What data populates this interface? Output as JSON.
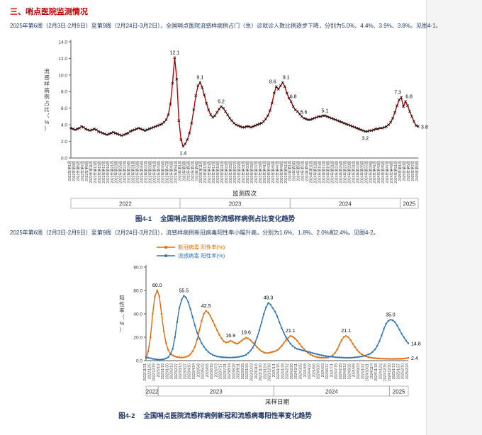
{
  "colors": {
    "heading_red": "#c00000",
    "body_text": "#1f3864",
    "ili_line": "#c00000",
    "covid_line": "#e36c09",
    "flu_line": "#2e75b6",
    "axis": "#595959"
  },
  "section": {
    "heading": "三、哨点医院监测情况"
  },
  "paragraphs": {
    "p1": "2025年第6周（2月3日-2月9日）至第9周（2月24日-3月2日），全国哨点医院流感样病例占门（急）诊就诊人数比例逐步下降，分别为5.0%、4.4%、3.9%、3.8%。见图4-1。",
    "p2": "2025年第6周（2月3日-2月9日）至第9周（2月24日-3月2日），流感样病例新冠病毒阳性率小幅升高，分别为1.6%、1.8%、2.0%和2.4%。见图4-2。"
  },
  "figures": {
    "f1": {
      "label": "图4-1",
      "title": "全国哨点医院报告的流感样病例占比变化趋势"
    },
    "f2": {
      "label": "图4-2",
      "title": "全国哨点医院流感样病例新冠和流感病毒阳性率变化趋势"
    }
  },
  "chart_data": [
    {
      "type": "line",
      "title": "全国哨点医院报告的流感样病例占比变化趋势",
      "y_title": "流感样病例占比（%）",
      "x_title": "监测周次",
      "y_axis": {
        "min": 0,
        "max": 14,
        "step": 2
      },
      "n_points": 165,
      "x_start": "2022年第1周",
      "x_end": "2025年第9周",
      "x_tick_step": 2,
      "series": [
        {
          "name": "流感样病例占比(%)",
          "color": "#c00000",
          "marker": "cross",
          "marker_color": "#000000",
          "values": [
            3.6,
            3.5,
            3.4,
            3.5,
            3.6,
            3.8,
            3.7,
            3.5,
            3.4,
            3.3,
            3.4,
            3.5,
            3.4,
            3.2,
            3.1,
            3.0,
            2.9,
            2.8,
            2.9,
            3.0,
            3.1,
            3.0,
            2.9,
            2.8,
            2.7,
            2.8,
            2.9,
            3.0,
            3.2,
            3.3,
            3.4,
            3.5,
            3.6,
            3.5,
            3.4,
            3.3,
            3.4,
            3.5,
            3.6,
            3.7,
            3.8,
            3.9,
            4.0,
            4.1,
            4.3,
            4.6,
            5.2,
            6.5,
            9.0,
            12.1,
            9.5,
            4.5,
            2.2,
            1.4,
            1.7,
            2.2,
            3.0,
            4.2,
            5.8,
            7.5,
            8.7,
            9.1,
            8.5,
            7.6,
            6.6,
            5.8,
            5.2,
            4.9,
            5.1,
            5.5,
            5.9,
            6.2,
            6.0,
            5.6,
            5.2,
            4.8,
            4.5,
            4.2,
            4.0,
            3.9,
            3.8,
            3.7,
            3.7,
            3.8,
            3.8,
            3.7,
            3.8,
            3.9,
            4.0,
            4.1,
            4.2,
            4.4,
            4.7,
            5.1,
            5.7,
            6.6,
            7.8,
            8.6,
            8.3,
            8.7,
            9.1,
            8.6,
            7.8,
            7.2,
            6.8,
            6.2,
            5.8,
            5.6,
            5.3,
            5.0,
            4.8,
            4.7,
            4.6,
            4.6,
            4.7,
            4.8,
            4.9,
            5.0,
            5.0,
            5.1,
            5.1,
            5.0,
            4.9,
            4.8,
            4.7,
            4.6,
            4.5,
            4.4,
            4.3,
            4.2,
            4.1,
            4.0,
            3.9,
            3.8,
            3.7,
            3.6,
            3.5,
            3.4,
            3.3,
            3.2,
            3.2,
            3.3,
            3.3,
            3.4,
            3.5,
            3.5,
            3.6,
            3.6,
            3.7,
            3.8,
            4.0,
            4.3,
            4.8,
            5.5,
            6.3,
            7.0,
            7.3,
            6.2,
            6.8,
            6.3,
            5.6,
            5.0,
            4.4,
            3.9,
            3.8
          ]
        }
      ],
      "annotations": [
        {
          "series": 0,
          "i": 49,
          "label": "12.1",
          "pos": "above"
        },
        {
          "series": 0,
          "i": 53,
          "label": "1.4",
          "pos": "below"
        },
        {
          "series": 0,
          "i": 61,
          "label": "9.1",
          "pos": "above"
        },
        {
          "series": 0,
          "i": 71,
          "label": "6.2",
          "pos": "above"
        },
        {
          "series": 0,
          "i": 97,
          "label": "8.6",
          "pos": "above",
          "dx": -5
        },
        {
          "series": 0,
          "i": 100,
          "label": "9.1",
          "pos": "above",
          "dx": 5
        },
        {
          "series": 0,
          "i": 104,
          "label": "6.8",
          "pos": "above",
          "dx": 3
        },
        {
          "series": 0,
          "i": 107,
          "label": "5.6",
          "pos": "right"
        },
        {
          "series": 0,
          "i": 120,
          "label": "5.1",
          "pos": "above"
        },
        {
          "series": 0,
          "i": 139,
          "label": "3.2",
          "pos": "below"
        },
        {
          "series": 0,
          "i": 156,
          "label": "7.3",
          "pos": "above",
          "dx": -5
        },
        {
          "series": 0,
          "i": 158,
          "label": "6.8",
          "pos": "above",
          "dx": 5
        },
        {
          "series": 0,
          "i": 164,
          "label": "3.8",
          "pos": "right"
        }
      ],
      "year_bands": [
        {
          "label": "2022",
          "from": 0,
          "to": 51
        },
        {
          "label": "2023",
          "from": 52,
          "to": 103
        },
        {
          "label": "2024",
          "from": 104,
          "to": 155
        },
        {
          "label": "2025",
          "from": 156,
          "to": 164
        }
      ],
      "x_ticks": [
        "2022年第1周",
        "2022年第3周",
        "2022年第5周",
        "2022年第7周",
        "2022年第9周",
        "2022年第11周",
        "2022年第13周",
        "2022年第15周",
        "2022年第17周",
        "2022年第19周",
        "2022年第21周",
        "2022年第23周",
        "2022年第25周",
        "2022年第27周",
        "2022年第29周",
        "2022年第31周",
        "2022年第33周",
        "2022年第35周",
        "2022年第37周",
        "2022年第39周",
        "2022年第41周",
        "2022年第43周",
        "2022年第45周",
        "2022年第47周",
        "2022年第49周",
        "2022年第51周",
        "2023年第1周",
        "2023年第3周",
        "2023年第5周",
        "2023年第7周",
        "2023年第9周",
        "2023年第11周",
        "2023年第13周",
        "2023年第15周",
        "2023年第17周",
        "2023年第19周",
        "2023年第21周",
        "2023年第23周",
        "2023年第25周",
        "2023年第27周",
        "2023年第29周",
        "2023年第31周",
        "2023年第33周",
        "2023年第35周",
        "2023年第37周",
        "2023年第39周",
        "2023年第41周",
        "2023年第43周",
        "2023年第45周",
        "2023年第47周",
        "2023年第49周",
        "2023年第51周",
        "2024年第1周",
        "2024年第3周",
        "2024年第5周",
        "2024年第7周",
        "2024年第9周",
        "2024年第11周",
        "2024年第13周",
        "2024年第15周",
        "2024年第17周",
        "2024年第19周",
        "2024年第21周",
        "2024年第23周",
        "2024年第25周",
        "2024年第27周",
        "2024年第29周",
        "2024年第31周",
        "2024年第33周",
        "2024年第35周",
        "2024年第37周",
        "2024年第39周",
        "2024年第41周",
        "2024年第43周",
        "2024年第45周",
        "2024年第47周",
        "2024年第49周",
        "2024年第51周",
        "2025年第1周",
        "2025年第3周",
        "2025年第5周",
        "2025年第7周",
        "2025年第9周"
      ]
    },
    {
      "type": "line",
      "title": "全国哨点医院流感样病例新冠和流感病毒阳性率变化趋势",
      "y_title": "阳性率（%）",
      "x_title": "采样日期",
      "y_axis": {
        "min": 0,
        "max": 80,
        "step": 20
      },
      "n_points": 119,
      "x_start": "2022/11/21",
      "x_end": "2025/2/24",
      "x_tick_step": 2,
      "legend": [
        {
          "label": "新冠病毒 阳性率(%)",
          "color": "#e36c09"
        },
        {
          "label": "流感病毒 阳性率(%)",
          "color": "#2e75b6"
        }
      ],
      "legend_position": "top",
      "series": [
        {
          "name": "新冠病毒 阳性率(%)",
          "color": "#e36c09",
          "marker": "square",
          "values": [
            2,
            8,
            20,
            40,
            55,
            60,
            55,
            40,
            25,
            15,
            9,
            6,
            4.5,
            3.5,
            3.0,
            2.8,
            2.6,
            2.8,
            3.2,
            4.0,
            5.5,
            8,
            12,
            18,
            26,
            34,
            40,
            42.5,
            41,
            38,
            34,
            30,
            26,
            22,
            19,
            16.5,
            15.5,
            16,
            16.9,
            16.2,
            15,
            14.5,
            15.5,
            17,
            18.5,
            19.6,
            19,
            17.5,
            15.5,
            13.5,
            11.5,
            9.5,
            8,
            7,
            6.5,
            6.5,
            7,
            7.5,
            8,
            9,
            10.5,
            12.5,
            15,
            17.5,
            19.5,
            21.1,
            20.5,
            19,
            17,
            14.5,
            12,
            10,
            8,
            6.5,
            5.2,
            4.2,
            3.5,
            3.0,
            2.7,
            2.5,
            2.4,
            2.5,
            2.8,
            3.4,
            4.5,
            6.5,
            9.5,
            13.5,
            17.5,
            20.2,
            21.1,
            20,
            17.5,
            14.5,
            11.5,
            9,
            7,
            5.5,
            4.4,
            3.6,
            3.0,
            2.6,
            2.3,
            2.1,
            1.9,
            1.8,
            1.7,
            1.6,
            1.5,
            1.5,
            1.4,
            1.4,
            1.5,
            1.5,
            1.5,
            1.6,
            1.8,
            2.0,
            2.4
          ]
        },
        {
          "name": "流感病毒 阳性率(%)",
          "color": "#2e75b6",
          "marker": "square",
          "values": [
            3,
            2.5,
            2,
            1.5,
            1.2,
            1.0,
            0.8,
            0.9,
            1.2,
            1.8,
            3,
            5.5,
            10,
            20,
            33,
            45,
            52,
            55.5,
            54,
            50,
            44,
            37,
            30,
            24,
            19,
            15,
            12,
            9.5,
            7.5,
            6,
            5,
            4.2,
            3.6,
            3.2,
            3.0,
            2.8,
            2.7,
            2.6,
            2.6,
            2.7,
            2.8,
            3.0,
            3.3,
            3.7,
            4.2,
            5.0,
            6.5,
            8.5,
            11,
            15,
            20,
            26,
            33,
            40,
            45.5,
            49.3,
            48,
            45,
            42,
            38,
            33,
            28,
            24,
            20,
            17,
            14.5,
            12.5,
            11,
            10,
            9.5,
            9,
            8.5,
            8,
            7.5,
            7,
            6.5,
            6,
            5.5,
            5,
            4.6,
            4.2,
            3.9,
            3.6,
            3.4,
            3.2,
            3.0,
            2.8,
            2.7,
            2.6,
            2.5,
            2.4,
            2.4,
            2.5,
            2.6,
            2.8,
            3.0,
            3.3,
            3.6,
            4.0,
            4.5,
            5.2,
            6.0,
            7.5,
            9.5,
            12.5,
            16.5,
            21.5,
            27,
            31.5,
            34,
            35.0,
            34.5,
            33,
            30,
            26.5,
            23,
            20,
            17,
            14.8
          ]
        }
      ],
      "annotations": [
        {
          "series": 0,
          "i": 5,
          "label": "60.0",
          "pos": "above"
        },
        {
          "series": 1,
          "i": 17,
          "label": "55.5",
          "pos": "above"
        },
        {
          "series": 0,
          "i": 27,
          "label": "42.5",
          "pos": "above"
        },
        {
          "series": 0,
          "i": 38,
          "label": "16.9",
          "pos": "above"
        },
        {
          "series": 0,
          "i": 45,
          "label": "19.6",
          "pos": "above"
        },
        {
          "series": 1,
          "i": 55,
          "label": "49.3",
          "pos": "above"
        },
        {
          "series": 0,
          "i": 65,
          "label": "21.1",
          "pos": "above"
        },
        {
          "series": 0,
          "i": 90,
          "label": "21.1",
          "pos": "above"
        },
        {
          "series": 1,
          "i": 110,
          "label": "35.0",
          "pos": "above"
        },
        {
          "series": 1,
          "i": 118,
          "label": "14.8",
          "pos": "right"
        },
        {
          "series": 0,
          "i": 118,
          "label": "2.4",
          "pos": "right"
        }
      ],
      "year_bands": [
        {
          "label": "2022",
          "from": 0,
          "to": 5
        },
        {
          "label": "2023",
          "from": 6,
          "to": 57
        },
        {
          "label": "2024",
          "from": 58,
          "to": 109
        },
        {
          "label": "2025",
          "from": 110,
          "to": 118
        }
      ],
      "x_ticks": [
        "2022/11/21",
        "2022/12/5",
        "2022/12/19",
        "2023/1/2",
        "2023/1/16",
        "2023/1/30",
        "2023/2/13",
        "2023/2/27",
        "2023/3/13",
        "2023/3/27",
        "2023/4/10",
        "2023/4/24",
        "2023/5/8",
        "2023/5/22",
        "2023/6/5",
        "2023/6/19",
        "2023/7/3",
        "2023/7/17",
        "2023/7/31",
        "2023/8/14",
        "2023/8/28",
        "2023/9/11",
        "2023/9/25",
        "2023/10/9",
        "2023/10/23",
        "2023/11/6",
        "2023/11/20",
        "2023/12/4",
        "2023/12/18",
        "2024/1/1",
        "2024/1/15",
        "2024/1/29",
        "2024/2/12",
        "2024/2/26",
        "2024/3/11",
        "2024/3/25",
        "2024/4/8",
        "2024/4/22",
        "2024/5/6",
        "2024/5/20",
        "2024/6/3",
        "2024/6/17",
        "2024/7/1",
        "2024/7/15",
        "2024/7/29",
        "2024/8/12",
        "2024/8/26",
        "2024/9/9",
        "2024/9/23",
        "2024/10/7",
        "2024/10/21",
        "2024/11/4",
        "2024/11/18",
        "2024/12/2",
        "2024/12/16",
        "2024/12/30",
        "2025/1/13",
        "2025/1/27",
        "2025/2/10",
        "2025/2/24"
      ]
    }
  ]
}
